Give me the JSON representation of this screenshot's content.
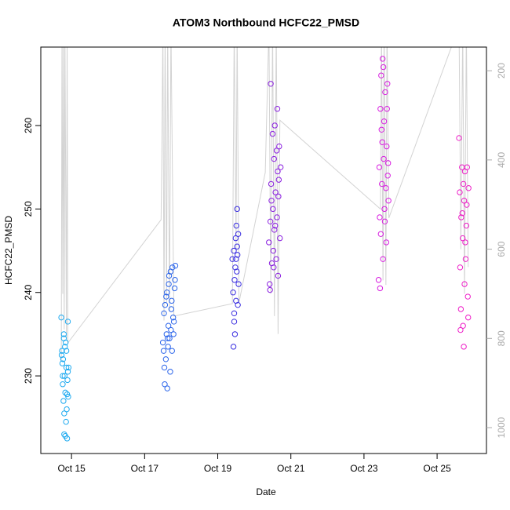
{
  "chart_data": {
    "type": "scatter",
    "title": "ATOM3 Northbound HCFC22_PMSD",
    "xlabel": "Date",
    "ylabel": "HCFC22_PMSD",
    "xlim": [
      14.16,
      26.35
    ],
    "xticks": [
      {
        "value": 15,
        "label": "Oct 15"
      },
      {
        "value": 17,
        "label": "Oct 17"
      },
      {
        "value": 19,
        "label": "Oct 19"
      },
      {
        "value": 21,
        "label": "Oct 21"
      },
      {
        "value": 23,
        "label": "Oct 23"
      },
      {
        "value": 25,
        "label": "Oct 25"
      }
    ],
    "ylim": [
      220.7,
      269.4
    ],
    "yticks": [
      230,
      240,
      250,
      260
    ],
    "y2lim": [
      1058,
      147
    ],
    "y2ticks": [
      200,
      400,
      600,
      800,
      1000
    ],
    "series": [
      {
        "type": "line",
        "axis": "y2",
        "color": "#d3d3d3",
        "x": [
          14.72,
          14.74,
          14.76,
          14.78,
          14.8,
          14.82,
          14.86,
          14.88,
          14.9,
          17.45,
          17.47,
          17.5,
          17.53,
          17.56,
          17.6,
          17.63,
          17.68,
          17.72,
          17.8,
          19.4,
          19.45,
          19.5,
          19.53,
          19.58,
          20.3,
          20.4,
          20.45,
          20.5,
          20.55,
          20.6,
          20.65,
          20.7,
          23.45,
          23.48,
          23.52,
          23.55,
          23.6,
          23.63,
          23.68,
          25.6,
          25.65,
          25.7,
          25.75,
          25.8,
          25.85
        ],
        "values": [
          850,
          100,
          700,
          100,
          780,
          100,
          800,
          100,
          810,
          534,
          390,
          100,
          760,
          100,
          720,
          100,
          740,
          100,
          750,
          722,
          100,
          600,
          100,
          720,
          428,
          100,
          700,
          100,
          750,
          100,
          790,
          311,
          510,
          100,
          670,
          100,
          680,
          100,
          530,
          100,
          600,
          100,
          700,
          100,
          640
        ]
      },
      {
        "color": "#1eaaf0",
        "x": [
          14.72,
          14.74,
          14.75,
          14.76,
          14.77,
          14.78,
          14.79,
          14.8,
          14.8,
          14.81,
          14.82,
          14.83,
          14.84,
          14.85,
          14.86,
          14.87,
          14.88,
          14.89,
          14.9,
          14.9,
          14.91,
          14.73,
          14.76,
          14.79,
          14.83,
          14.86,
          14.88,
          14.92
        ],
        "values": [
          237,
          233,
          231.5,
          229,
          232,
          227,
          235,
          225.5,
          223,
          230,
          233.5,
          228,
          234,
          224.5,
          231,
          226,
          222.5,
          229.5,
          236.5,
          230.5,
          227.5,
          232.5,
          230,
          234.5,
          222.8,
          233,
          227.8,
          231
        ]
      },
      {
        "color": "#2a64ea",
        "x": [
          17.5,
          17.52,
          17.53,
          17.55,
          17.56,
          17.58,
          17.6,
          17.61,
          17.62,
          17.64,
          17.65,
          17.66,
          17.68,
          17.7,
          17.71,
          17.72,
          17.74,
          17.75,
          17.76,
          17.78,
          17.8,
          17.82,
          17.84,
          17.54,
          17.59,
          17.63,
          17.67,
          17.73,
          17.79,
          17.83
        ],
        "values": [
          234,
          233,
          237.5,
          229,
          238.5,
          232,
          235,
          240,
          228.5,
          233.5,
          236,
          241,
          234.5,
          230.5,
          242.5,
          235.5,
          239,
          233,
          243,
          237,
          236.5,
          240.5,
          243.2,
          231,
          239.5,
          234.5,
          242,
          238,
          235,
          241.5
        ]
      },
      {
        "color": "#3a2ee0",
        "x": [
          19.4,
          19.42,
          19.43,
          19.44,
          19.45,
          19.46,
          19.47,
          19.48,
          19.49,
          19.5,
          19.51,
          19.52,
          19.53,
          19.54,
          19.55,
          19.56,
          19.57,
          19.45,
          19.5,
          19.53
        ],
        "values": [
          244,
          240,
          233.5,
          245,
          237.5,
          241.5,
          235,
          243,
          246.5,
          239,
          248,
          242.5,
          250,
          244.5,
          238.5,
          247,
          241,
          236.5,
          244,
          245.5
        ]
      },
      {
        "color": "#8a1ee0",
        "x": [
          20.4,
          20.42,
          20.44,
          20.45,
          20.46,
          20.48,
          20.5,
          20.51,
          20.52,
          20.54,
          20.55,
          20.56,
          20.58,
          20.6,
          20.61,
          20.62,
          20.64,
          20.65,
          20.66,
          20.68,
          20.7,
          20.72,
          20.43,
          20.47,
          20.53,
          20.57,
          20.63,
          20.67
        ],
        "values": [
          246,
          241,
          248.5,
          265,
          253,
          243.5,
          259,
          250,
          245,
          256,
          247.5,
          260,
          252,
          244,
          257,
          249,
          254.5,
          242,
          251.5,
          257.5,
          246.5,
          255,
          240.3,
          251,
          243,
          248,
          262,
          253.5
        ]
      },
      {
        "color": "#d81ee0",
        "x": [
          23.4,
          23.42,
          23.43,
          23.45,
          23.46,
          23.47,
          23.49,
          23.5,
          23.51,
          23.52,
          23.54,
          23.55,
          23.56,
          23.58,
          23.6,
          23.61,
          23.62,
          23.64,
          23.65,
          23.67,
          23.44,
          23.48,
          23.53,
          23.57,
          23.63,
          23.66
        ],
        "values": [
          241.5,
          255,
          249,
          262,
          247,
          266,
          253,
          258,
          268,
          244,
          256,
          260.5,
          250,
          264,
          252.5,
          246,
          257.5,
          265,
          254,
          251,
          240.5,
          259.5,
          267,
          248.5,
          262,
          255.5
        ]
      },
      {
        "color": "#ee1ec8",
        "x": [
          25.6,
          25.62,
          25.63,
          25.65,
          25.66,
          25.68,
          25.7,
          25.71,
          25.72,
          25.74,
          25.75,
          25.76,
          25.78,
          25.8,
          25.82,
          25.84,
          25.86,
          25.64,
          25.69,
          25.73,
          25.77,
          25.81,
          25.85
        ],
        "values": [
          258.5,
          252,
          243,
          238,
          249,
          255,
          246.5,
          236,
          253,
          251,
          241,
          254.5,
          244,
          248,
          255,
          239.5,
          252.5,
          235.5,
          249.5,
          233.5,
          246,
          250.5,
          237
        ]
      }
    ]
  }
}
